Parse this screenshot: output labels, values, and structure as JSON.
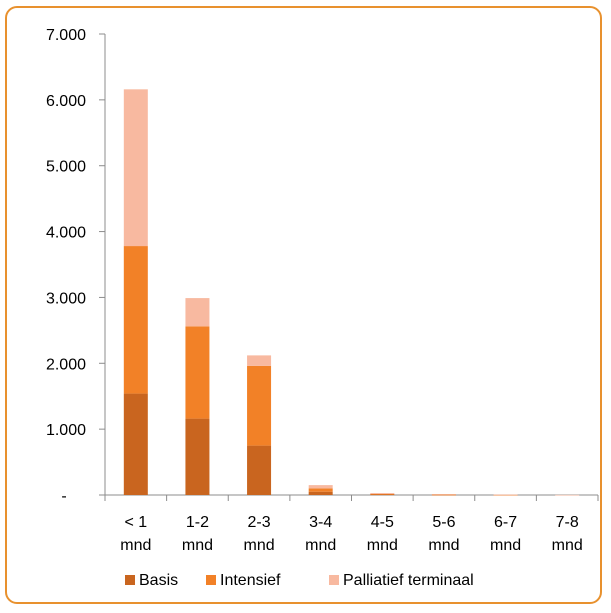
{
  "chart_data": {
    "type": "bar",
    "stacked": true,
    "categories": [
      "< 1 mnd",
      "1-2 mnd",
      "2-3 mnd",
      "3-4 mnd",
      "4-5 mnd",
      "5-6 mnd",
      "6-7 mnd",
      "7-8 mnd"
    ],
    "category_lines": [
      [
        "< 1",
        "mnd"
      ],
      [
        "1-2",
        "mnd"
      ],
      [
        "2-3",
        "mnd"
      ],
      [
        "3-4",
        "mnd"
      ],
      [
        "4-5",
        "mnd"
      ],
      [
        "5-6",
        "mnd"
      ],
      [
        "6-7",
        "mnd"
      ],
      [
        "7-8",
        "mnd"
      ]
    ],
    "series": [
      {
        "name": "Basis",
        "color": "#c9651f",
        "values": [
          1540,
          1160,
          750,
          50,
          8,
          3,
          1,
          0
        ]
      },
      {
        "name": "Intensief",
        "color": "#f28127",
        "values": [
          2240,
          1400,
          1210,
          50,
          8,
          3,
          1,
          0
        ]
      },
      {
        "name": "Palliatief terminaal",
        "color": "#f8b9a0",
        "values": [
          2380,
          430,
          160,
          50,
          14,
          8,
          4,
          2
        ]
      }
    ],
    "yticks": [
      "-",
      "1.000",
      "2.000",
      "3.000",
      "4.000",
      "5.000",
      "6.000",
      "7.000"
    ],
    "ylim": [
      0,
      7000
    ],
    "title": "",
    "xlabel": "",
    "ylabel": "",
    "grid": false,
    "legend_position": "bottom"
  }
}
